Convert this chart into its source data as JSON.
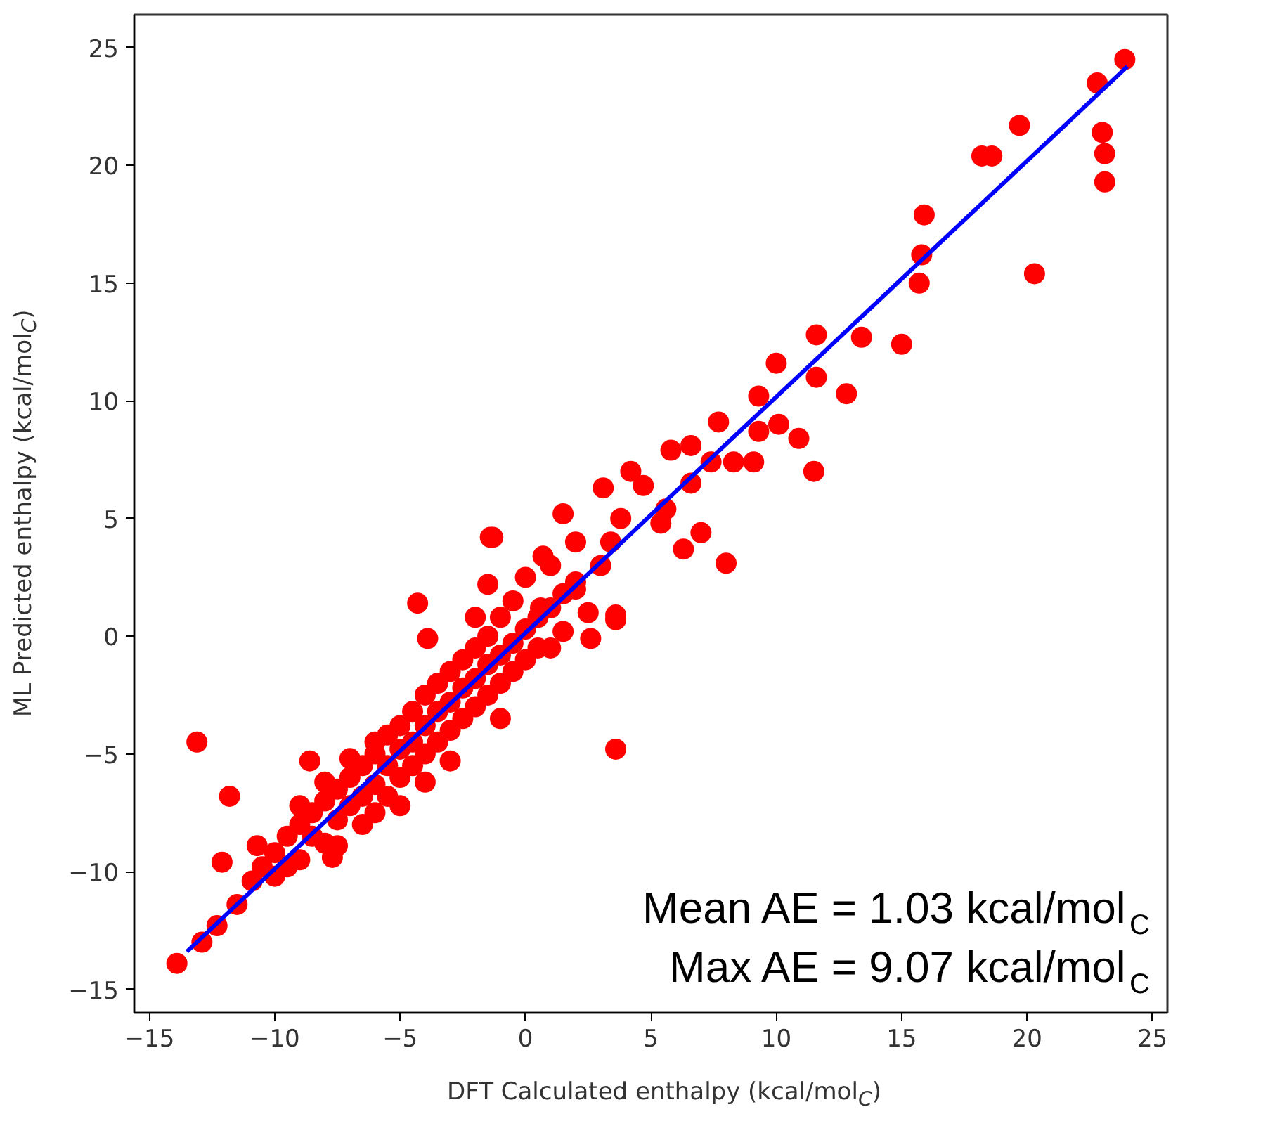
{
  "chart_data": {
    "type": "scatter",
    "xlabel": "DFT Calculated enthalpy (kcal/mol$_{C}$)",
    "ylabel": "ML Predicted enthalpy (kcal/mol$_{C}$)",
    "xlim": [
      -15.6,
      25.6
    ],
    "ylim": [
      -16.0,
      26.4
    ],
    "xticks": [
      -15,
      -10,
      -5,
      0,
      5,
      10,
      15,
      20,
      25
    ],
    "yticks": [
      -15,
      -10,
      -5,
      0,
      5,
      10,
      15,
      20,
      25
    ],
    "grid": false,
    "annotations": [
      "Mean AE = 1.03 kcal/mol$_{C}$",
      "Max AE = 9.07 kcal/mol$_{C}$"
    ],
    "series": [
      {
        "marker": "circle",
        "color": "#ff0000",
        "x": [
          23.9,
          22.8,
          23.0,
          23.1,
          23.1,
          19.7,
          18.2,
          18.6,
          20.3,
          15.9,
          15.8,
          15.7,
          15.0,
          13.4,
          11.6,
          11.6,
          12.8,
          10.0,
          9.3,
          9.3,
          10.1,
          10.9,
          11.5,
          7.7,
          5.8,
          6.6,
          7.4,
          8.3,
          9.1,
          6.6,
          4.2,
          3.1,
          4.7,
          5.6,
          5.4,
          3.8,
          3.4,
          1.5,
          2.0,
          0.7,
          7.0,
          6.3,
          8.0,
          -1.3,
          2.0,
          3.6,
          0.6,
          -13.9,
          -12.9,
          -12.3,
          -11.5,
          -13.1,
          -11.8,
          -12.1,
          -10.7,
          -10.9,
          -8.6,
          -7.7,
          -4.3,
          -3.9,
          -3.0,
          -1.5,
          -1.4,
          3.6,
          3.6,
          2.6,
          -10.5,
          -10.0,
          -10.0,
          -9.5,
          -9.5,
          -9.0,
          -9.0,
          -9.0,
          -8.5,
          -8.5,
          -8.0,
          -8.0,
          -8.0,
          -7.5,
          -7.5,
          -7.5,
          -7.0,
          -7.0,
          -7.0,
          -6.5,
          -6.5,
          -6.5,
          -6.0,
          -6.0,
          -6.0,
          -6.0,
          -5.5,
          -5.5,
          -5.5,
          -5.0,
          -5.0,
          -5.0,
          -5.0,
          -4.5,
          -4.5,
          -4.5,
          -4.0,
          -4.0,
          -4.0,
          -4.0,
          -3.5,
          -3.5,
          -3.5,
          -3.0,
          -3.0,
          -3.0,
          -2.5,
          -2.5,
          -2.5,
          -2.0,
          -2.0,
          -2.0,
          -2.0,
          -1.5,
          -1.5,
          -1.5,
          -1.0,
          -1.0,
          -1.0,
          -1.0,
          -0.5,
          -0.5,
          -0.5,
          0.0,
          0.0,
          0.0,
          0.5,
          0.5,
          1.0,
          1.0,
          1.0,
          1.5,
          1.5,
          2.0,
          2.5,
          3.0
        ],
        "values": [
          24.5,
          23.5,
          21.4,
          20.5,
          19.3,
          21.7,
          20.4,
          20.4,
          15.4,
          17.9,
          16.2,
          15.0,
          12.4,
          12.7,
          12.8,
          11.0,
          10.3,
          11.6,
          10.2,
          8.7,
          9.0,
          8.4,
          7.0,
          9.1,
          7.9,
          8.1,
          7.4,
          7.4,
          7.4,
          6.5,
          7.0,
          6.3,
          6.4,
          5.4,
          4.8,
          5.0,
          4.0,
          5.2,
          4.0,
          3.4,
          4.4,
          3.7,
          3.1,
          4.2,
          2.0,
          0.9,
          1.2,
          -13.9,
          -13.0,
          -12.3,
          -11.4,
          -4.5,
          -6.8,
          -9.6,
          -8.9,
          -10.4,
          -5.3,
          -9.4,
          1.4,
          -0.1,
          -5.3,
          2.2,
          4.2,
          -4.8,
          0.7,
          -0.1,
          -9.8,
          -9.2,
          -10.2,
          -8.5,
          -9.8,
          -8.0,
          -9.5,
          -7.2,
          -8.5,
          -7.5,
          -7.0,
          -8.8,
          -6.2,
          -7.8,
          -6.5,
          -8.9,
          -6.0,
          -7.2,
          -5.2,
          -6.8,
          -5.5,
          -8.0,
          -5.0,
          -6.3,
          -7.5,
          -4.5,
          -5.5,
          -4.2,
          -6.8,
          -4.8,
          -3.8,
          -6.0,
          -7.2,
          -4.5,
          -3.2,
          -5.5,
          -3.8,
          -2.5,
          -5.0,
          -6.2,
          -3.2,
          -2.0,
          -4.5,
          -2.8,
          -1.5,
          -4.0,
          -2.2,
          -1.0,
          -3.5,
          -1.8,
          -0.5,
          -3.0,
          0.8,
          -1.2,
          0.0,
          -2.5,
          -0.8,
          0.8,
          -2.0,
          -3.5,
          -0.3,
          1.5,
          -1.5,
          0.3,
          -1.0,
          2.5,
          0.8,
          -0.5,
          1.2,
          3.0,
          -0.5,
          1.8,
          0.2,
          2.3,
          1.0,
          3.0
        ]
      },
      {
        "type": "line",
        "color": "#0000ff",
        "x": [
          -13.5,
          24.0
        ],
        "values": [
          -13.4,
          24.2
        ]
      }
    ]
  }
}
